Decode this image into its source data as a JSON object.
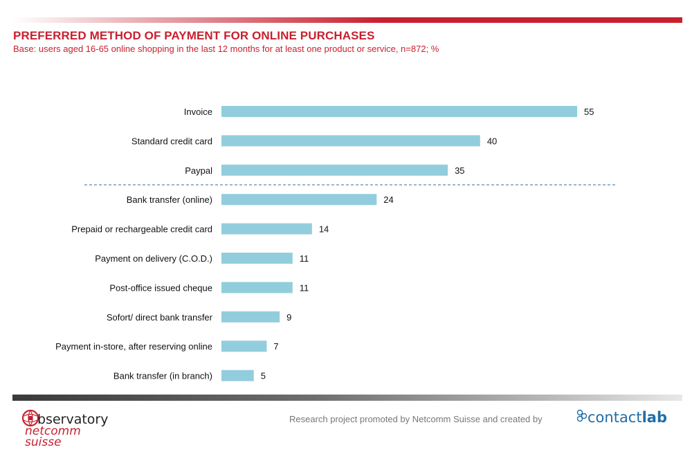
{
  "header": {
    "title": "PREFERRED METHOD OF PAYMENT FOR ONLINE PURCHASES",
    "subtitle": "Base: users aged 16-65 online shopping in the last 12 months for at least one product or service, n=872; %"
  },
  "footer": {
    "credit": "Research project promoted by Netcomm Suisse and created by",
    "left_logo": {
      "line1": "bservatory",
      "line2": "netcomm",
      "line3": "suisse"
    },
    "right_logo": {
      "part1": "contact",
      "part2": "lab"
    }
  },
  "colors": {
    "accent": "#c8202f",
    "bar": "#92cddd",
    "divider": "#2f6f9f",
    "logo_blue": "#1f6ea8"
  },
  "chart_data": {
    "type": "bar",
    "orientation": "horizontal",
    "categories": [
      "Invoice",
      "Standard credit card",
      "Paypal",
      "Bank transfer (online)",
      "Prepaid or rechargeable credit card",
      "Payment on delivery (C.O.D.)",
      "Post-office issued cheque",
      "Sofort/ direct bank transfer",
      "Payment in-store, after reserving online",
      "Bank transfer (in branch)"
    ],
    "values": [
      55,
      40,
      35,
      24,
      14,
      11,
      11,
      9,
      7,
      5
    ],
    "xlim": [
      0,
      55
    ],
    "divider_after_index": 2,
    "grid": false,
    "legend": "none",
    "unit": "%"
  }
}
